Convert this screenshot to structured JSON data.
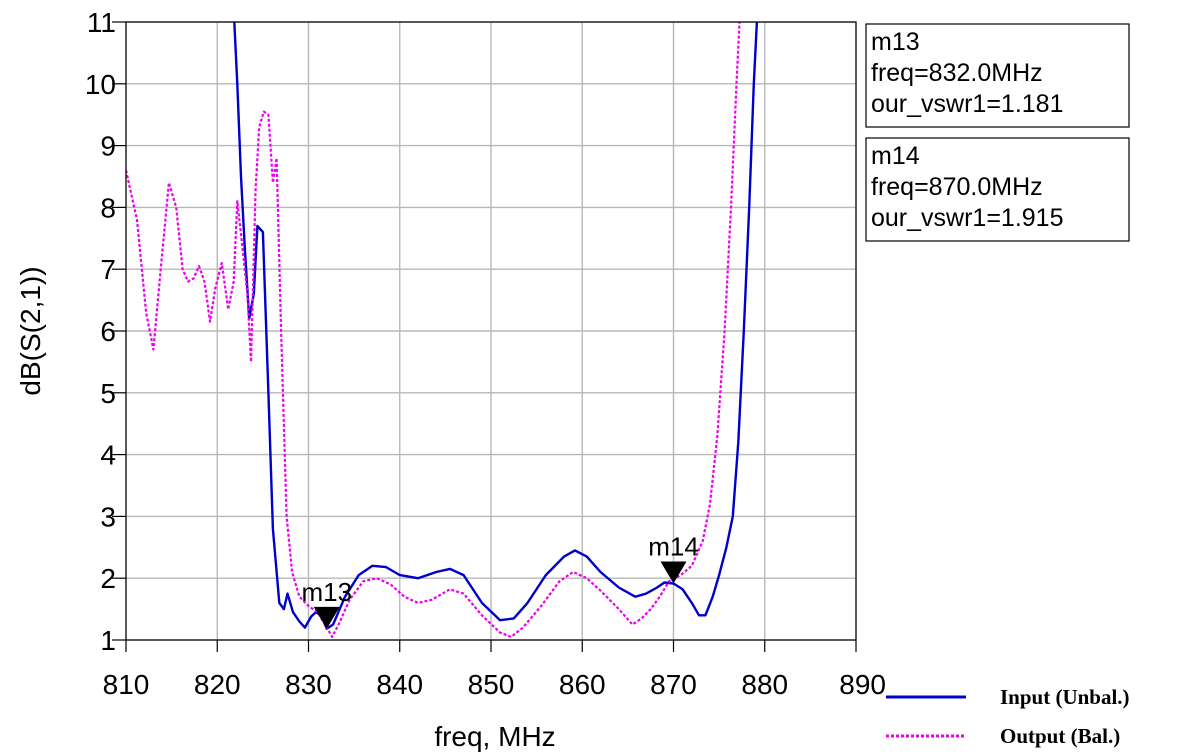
{
  "chart_data": {
    "type": "line",
    "xlabel": "freq, MHz",
    "ylabel": "dB(S(2,1))",
    "xlim": [
      810,
      890
    ],
    "ylim": [
      1,
      11
    ],
    "xticks": [
      810,
      820,
      830,
      840,
      850,
      860,
      870,
      880,
      890
    ],
    "yticks": [
      1,
      2,
      3,
      4,
      5,
      6,
      7,
      8,
      9,
      10,
      11
    ],
    "grid": true,
    "legend_position": "bottom-right",
    "series": [
      {
        "name": "Input (Unbal.)",
        "color": "#0000cc",
        "dash": "solid",
        "points": [
          [
            821.8,
            11.2
          ],
          [
            822.2,
            10.0
          ],
          [
            822.6,
            8.5
          ],
          [
            823.0,
            7.4
          ],
          [
            823.5,
            6.2
          ],
          [
            824.0,
            6.6
          ],
          [
            824.4,
            7.7
          ],
          [
            825.0,
            7.6
          ],
          [
            825.6,
            5.0
          ],
          [
            826.1,
            2.8
          ],
          [
            826.8,
            1.6
          ],
          [
            827.3,
            1.5
          ],
          [
            827.7,
            1.75
          ],
          [
            828.3,
            1.45
          ],
          [
            829.0,
            1.3
          ],
          [
            829.6,
            1.2
          ],
          [
            830.3,
            1.38
          ],
          [
            830.8,
            1.45
          ],
          [
            831.4,
            1.4
          ],
          [
            832.0,
            1.181
          ],
          [
            832.7,
            1.25
          ],
          [
            834.0,
            1.7
          ],
          [
            835.5,
            2.05
          ],
          [
            837.0,
            2.2
          ],
          [
            838.5,
            2.18
          ],
          [
            840.0,
            2.05
          ],
          [
            842.0,
            2.0
          ],
          [
            844.0,
            2.1
          ],
          [
            845.5,
            2.15
          ],
          [
            847.0,
            2.05
          ],
          [
            849.0,
            1.6
          ],
          [
            851.0,
            1.32
          ],
          [
            852.5,
            1.35
          ],
          [
            854.0,
            1.6
          ],
          [
            856.0,
            2.05
          ],
          [
            858.0,
            2.35
          ],
          [
            859.2,
            2.45
          ],
          [
            860.5,
            2.35
          ],
          [
            862.0,
            2.1
          ],
          [
            864.0,
            1.85
          ],
          [
            865.8,
            1.7
          ],
          [
            867.0,
            1.75
          ],
          [
            868.2,
            1.85
          ],
          [
            869.0,
            1.93
          ],
          [
            870.0,
            1.915
          ],
          [
            871.0,
            1.82
          ],
          [
            872.0,
            1.6
          ],
          [
            872.8,
            1.4
          ],
          [
            873.5,
            1.4
          ],
          [
            874.3,
            1.7
          ],
          [
            875.0,
            2.05
          ],
          [
            875.8,
            2.5
          ],
          [
            876.5,
            3.0
          ],
          [
            877.1,
            4.2
          ],
          [
            877.7,
            6.0
          ],
          [
            878.3,
            8.0
          ],
          [
            878.8,
            10.0
          ],
          [
            879.2,
            11.2
          ]
        ]
      },
      {
        "name": "Output (Bal.)",
        "color": "#ee00ee",
        "dash": "dotted",
        "points": [
          [
            810.0,
            8.6
          ],
          [
            811.2,
            7.8
          ],
          [
            812.2,
            6.3
          ],
          [
            813.0,
            5.7
          ],
          [
            813.8,
            7.0
          ],
          [
            814.7,
            8.4
          ],
          [
            815.5,
            8.0
          ],
          [
            816.2,
            7.0
          ],
          [
            816.8,
            6.8
          ],
          [
            817.4,
            6.85
          ],
          [
            818.0,
            7.05
          ],
          [
            818.6,
            6.8
          ],
          [
            819.2,
            6.15
          ],
          [
            819.8,
            6.7
          ],
          [
            820.5,
            7.1
          ],
          [
            821.2,
            6.35
          ],
          [
            821.8,
            6.8
          ],
          [
            822.2,
            8.1
          ],
          [
            822.8,
            7.3
          ],
          [
            823.3,
            6.6
          ],
          [
            823.7,
            5.5
          ],
          [
            824.2,
            8.3
          ],
          [
            824.6,
            9.3
          ],
          [
            825.1,
            9.55
          ],
          [
            825.6,
            9.5
          ],
          [
            826.1,
            8.4
          ],
          [
            826.5,
            8.8
          ],
          [
            827.0,
            6.0
          ],
          [
            827.6,
            3.0
          ],
          [
            828.2,
            2.1
          ],
          [
            829.0,
            1.7
          ],
          [
            830.0,
            1.55
          ],
          [
            831.0,
            1.45
          ],
          [
            832.0,
            1.2
          ],
          [
            832.6,
            1.05
          ],
          [
            833.3,
            1.25
          ],
          [
            834.5,
            1.65
          ],
          [
            836.0,
            1.95
          ],
          [
            837.5,
            2.0
          ],
          [
            839.0,
            1.9
          ],
          [
            840.5,
            1.7
          ],
          [
            842.0,
            1.6
          ],
          [
            843.5,
            1.65
          ],
          [
            845.5,
            1.82
          ],
          [
            847.0,
            1.75
          ],
          [
            849.0,
            1.4
          ],
          [
            851.0,
            1.12
          ],
          [
            852.2,
            1.05
          ],
          [
            853.5,
            1.2
          ],
          [
            855.5,
            1.55
          ],
          [
            857.5,
            1.95
          ],
          [
            859.0,
            2.1
          ],
          [
            860.5,
            2.0
          ],
          [
            862.0,
            1.8
          ],
          [
            864.0,
            1.5
          ],
          [
            865.5,
            1.25
          ],
          [
            866.5,
            1.35
          ],
          [
            867.5,
            1.5
          ],
          [
            868.5,
            1.7
          ],
          [
            869.5,
            1.95
          ],
          [
            870.8,
            2.05
          ],
          [
            872.0,
            2.2
          ],
          [
            873.2,
            2.6
          ],
          [
            874.0,
            3.2
          ],
          [
            874.8,
            4.3
          ],
          [
            875.6,
            6.0
          ],
          [
            876.3,
            8.0
          ],
          [
            876.9,
            10.0
          ],
          [
            877.3,
            11.2
          ]
        ]
      }
    ],
    "markers": [
      {
        "label": "m13",
        "x": 832.0,
        "y": 1.181
      },
      {
        "label": "m14",
        "x": 870.0,
        "y": 1.915
      }
    ]
  },
  "marker_boxes": [
    {
      "lines": [
        "m13",
        "freq=832.0MHz",
        "our_vswr1=1.181"
      ]
    },
    {
      "lines": [
        "m14",
        "freq=870.0MHz",
        "our_vswr1=1.915"
      ]
    }
  ]
}
